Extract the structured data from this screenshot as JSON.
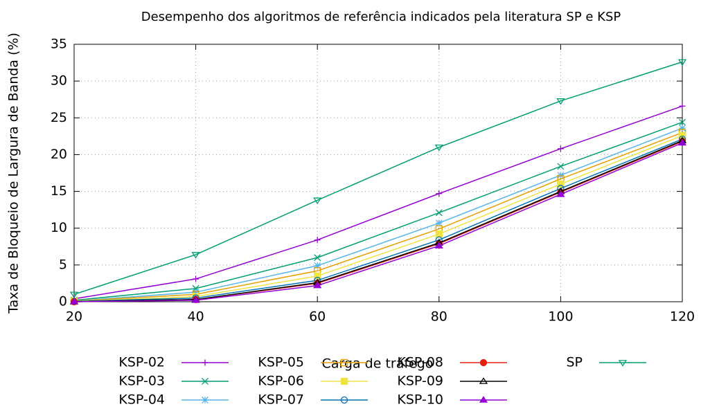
{
  "chart_data": {
    "type": "line",
    "title": "Desempenho dos algoritmos de referência indicados pela literatura SP e KSP",
    "x_label": "Carga de tráfego",
    "y_label": "Taxa de Bloqueio de Largura de Banda (%)",
    "x": [
      20,
      40,
      60,
      80,
      100,
      120
    ],
    "xlim": [
      20,
      120
    ],
    "xticks": [
      20,
      40,
      60,
      80,
      100,
      120
    ],
    "ylim": [
      0,
      35
    ],
    "yticks": [
      0,
      5,
      10,
      15,
      20,
      25,
      30,
      35
    ],
    "grid": true,
    "series": [
      {
        "name": "KSP-02",
        "color": "#9400d3",
        "marker": "plus",
        "values": [
          0.4,
          3.1,
          8.4,
          14.7,
          20.8,
          26.6
        ]
      },
      {
        "name": "KSP-03",
        "color": "#009e73",
        "marker": "cross",
        "values": [
          0.2,
          1.8,
          6.0,
          12.1,
          18.4,
          24.4
        ]
      },
      {
        "name": "KSP-04",
        "color": "#56b4e9",
        "marker": "star",
        "values": [
          0.1,
          1.3,
          4.9,
          10.7,
          17.2,
          23.6
        ]
      },
      {
        "name": "KSP-05",
        "color": "#e69f00",
        "marker": "square-open",
        "values": [
          0.1,
          1.0,
          4.2,
          9.9,
          16.7,
          23.0
        ]
      },
      {
        "name": "KSP-06",
        "color": "#f0e442",
        "marker": "square",
        "values": [
          0.05,
          0.7,
          3.5,
          9.2,
          16.0,
          22.6
        ]
      },
      {
        "name": "KSP-07",
        "color": "#0072b2",
        "marker": "circle-open",
        "values": [
          0.05,
          0.5,
          2.9,
          8.4,
          15.4,
          22.1
        ]
      },
      {
        "name": "KSP-08",
        "color": "#e51e10",
        "marker": "circle",
        "values": [
          0,
          0.3,
          2.5,
          7.9,
          14.9,
          21.8
        ]
      },
      {
        "name": "KSP-09",
        "color": "#000000",
        "marker": "triangle-open",
        "values": [
          0,
          0.3,
          2.6,
          8.0,
          15.0,
          21.9
        ]
      },
      {
        "name": "KSP-10",
        "color": "#9400d3",
        "marker": "triangle",
        "values": [
          0,
          0.2,
          2.2,
          7.6,
          14.6,
          21.6
        ]
      },
      {
        "name": "SP",
        "color": "#009e73",
        "marker": "triangle-down-open",
        "values": [
          1.0,
          6.4,
          13.8,
          21.0,
          27.3,
          32.6
        ]
      }
    ]
  }
}
